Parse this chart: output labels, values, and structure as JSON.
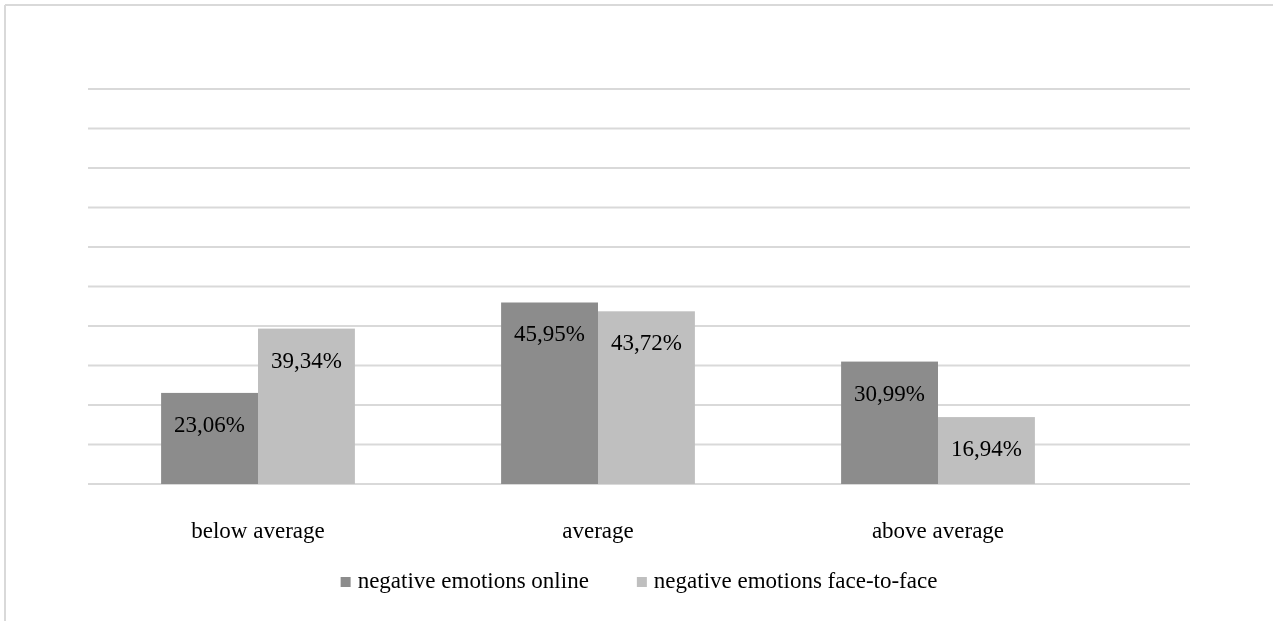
{
  "chart_data": {
    "type": "bar",
    "categories": [
      "below average",
      "average",
      "above average"
    ],
    "series": [
      {
        "name": "negative emotions online",
        "color": "#8c8c8c",
        "values": [
          23.06,
          45.95,
          30.99
        ],
        "value_labels": [
          "23,06%",
          "45,95%",
          "30,99%"
        ]
      },
      {
        "name": "negative emotions face-to-face",
        "color": "#bfbfbf",
        "values": [
          39.34,
          43.72,
          16.94
        ],
        "value_labels": [
          "39,34%",
          "43,72%",
          "16,94%"
        ]
      }
    ],
    "ylim": [
      0,
      100
    ],
    "yticks": [
      {
        "value": 0,
        "label": null
      },
      {
        "value": 10,
        "label": null
      },
      {
        "value": 20,
        "label": null
      },
      {
        "value": 30,
        "label": null
      },
      {
        "value": 40,
        "label": null
      },
      {
        "value": 50,
        "label": null
      },
      {
        "value": 60,
        "label": null
      },
      {
        "value": 70,
        "label": null
      },
      {
        "value": 80,
        "label": null
      },
      {
        "value": 90,
        "label": null
      },
      {
        "value": 100,
        "label": null
      }
    ],
    "tick_labels": "x",
    "grid": "y",
    "legend": "bottom"
  }
}
